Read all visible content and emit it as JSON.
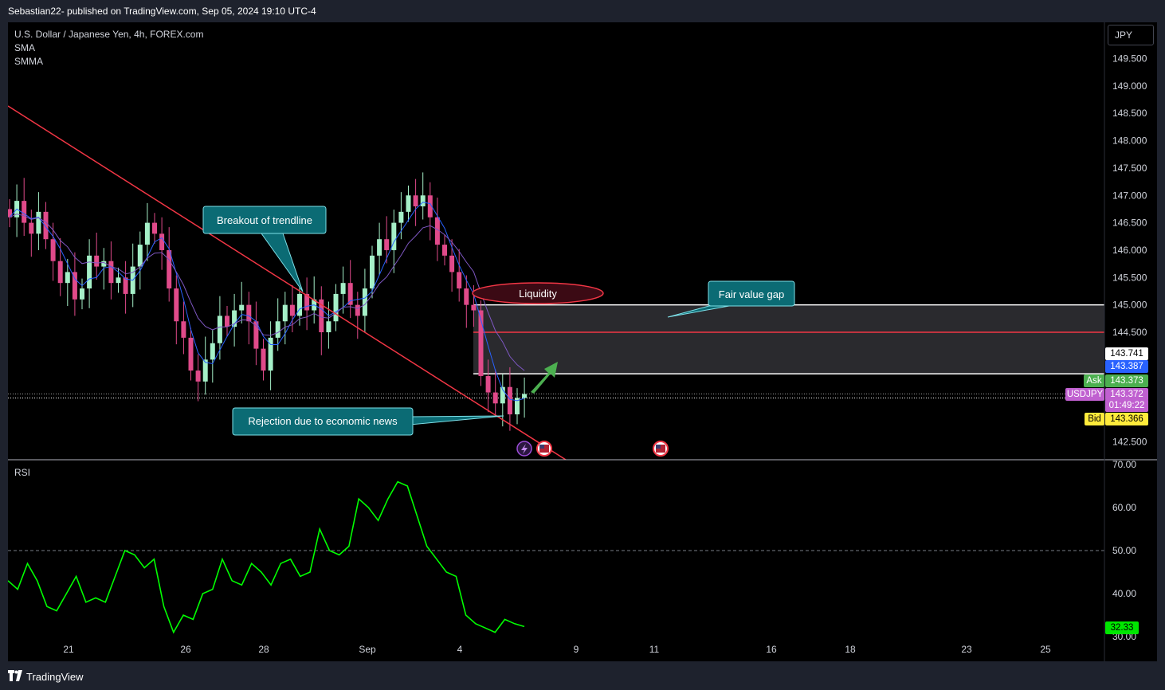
{
  "header": {
    "published": "Sebastian22- published on TradingView.com, Sep 05, 2024 19:10 UTC-4"
  },
  "legend": {
    "symbol": "U.S. Dollar / Japanese Yen, 4h, FOREX.com",
    "ind1": "SMA",
    "ind2": "SMMA",
    "rsi": "RSI"
  },
  "currency_button": "JPY",
  "footer": {
    "brand": "TradingView"
  },
  "annotations": {
    "breakout": "Breakout of trendline",
    "liquidity": "Liquidity",
    "fvg": "Fair value gap",
    "rejection": "Rejection due to economic news"
  },
  "price_labels": {
    "p1": "143.741",
    "p2": "143.387",
    "ask_tag": "Ask",
    "ask": "143.373",
    "sym_tag": "USDJPY",
    "last": "143.372",
    "countdown": "01:49:22",
    "bid_tag": "Bid",
    "bid": "143.366",
    "rsi_value": "32.33"
  },
  "colors": {
    "up": "#a5f0c8",
    "down": "#e04a8a",
    "trend": "#f23645",
    "rsi": "#00ff00",
    "teal": "#0b6b74"
  },
  "chart_data": [
    {
      "type": "candlestick",
      "title": "U.S. Dollar / Japanese Yen, 4h, FOREX.com",
      "y_ticks": [
        "149.500",
        "149.000",
        "148.500",
        "148.000",
        "147.500",
        "147.000",
        "146.500",
        "146.000",
        "145.500",
        "145.000",
        "144.500",
        "142.500"
      ],
      "ylim": [
        142.2,
        150.1
      ],
      "x_ticks": [
        "21",
        "26",
        "28",
        "Sep",
        "4",
        "9",
        "11",
        "16",
        "18",
        "23",
        "25"
      ],
      "closes": [
        146.6,
        146.9,
        146.5,
        146.3,
        146.7,
        146.2,
        145.8,
        145.4,
        145.6,
        145.1,
        145.3,
        145.9,
        145.7,
        145.8,
        145.4,
        145.5,
        145.2,
        145.7,
        146.1,
        146.5,
        146.3,
        146.0,
        145.3,
        144.7,
        144.4,
        143.8,
        143.6,
        144.0,
        144.3,
        144.8,
        144.6,
        144.9,
        145.0,
        144.7,
        144.2,
        143.8,
        144.4,
        144.7,
        145.0,
        144.8,
        145.2,
        144.9,
        145.1,
        144.5,
        144.7,
        145.2,
        145.4,
        145.0,
        144.8,
        145.3,
        145.9,
        146.2,
        146.0,
        146.5,
        146.7,
        147.0,
        146.8,
        147.0,
        146.6,
        146.1,
        145.9,
        145.6,
        145.3,
        145.0,
        144.9,
        143.7,
        143.4,
        143.2,
        143.5,
        143.0,
        143.3,
        143.372
      ],
      "series": [
        {
          "name": "SMA"
        },
        {
          "name": "SMMA"
        }
      ],
      "levels": [
        145.0,
        144.5,
        143.741
      ]
    },
    {
      "type": "line",
      "title": "RSI",
      "y_ticks": [
        "70.00",
        "60.00",
        "50.00",
        "40.00",
        "30.00"
      ],
      "ylim": [
        29.8,
        70
      ],
      "values": [
        43,
        41,
        47,
        43,
        37,
        36,
        40,
        44,
        38,
        39,
        38,
        44,
        50,
        49,
        46,
        48,
        37,
        31,
        35,
        34,
        40,
        41,
        48,
        43,
        42,
        47,
        45,
        42,
        47,
        48,
        44,
        45,
        55,
        50,
        49,
        51,
        62,
        60,
        57,
        62,
        66,
        65,
        58,
        51,
        48,
        45,
        44,
        35,
        33,
        32,
        31,
        34,
        33,
        32.33
      ]
    }
  ]
}
